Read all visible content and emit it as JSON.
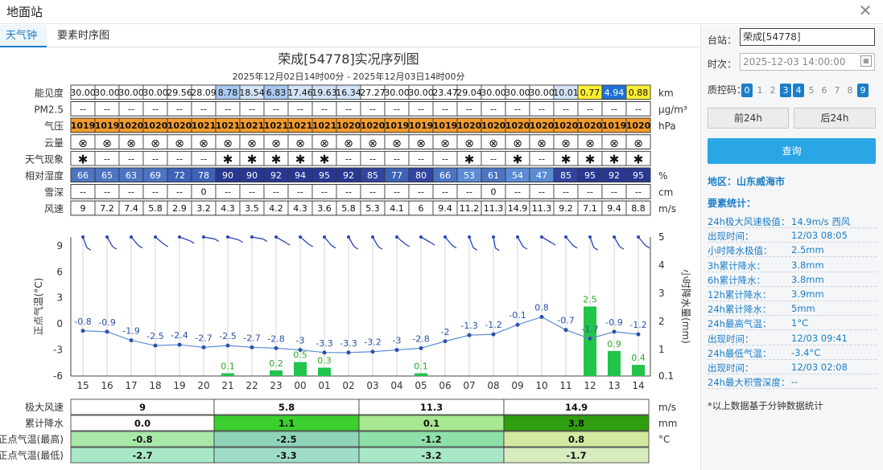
{
  "window": {
    "title": "地面站"
  },
  "tabs": [
    "天气钟",
    "要素时序图"
  ],
  "chart_data": {
    "type": "line",
    "title": "荣成[54778]实况序列图",
    "subtitle": "2025年12月02日14时00分 - 2025年12月03日14时00分",
    "hours": [
      "15",
      "16",
      "17",
      "18",
      "19",
      "20",
      "21",
      "22",
      "23",
      "00",
      "01",
      "02",
      "03",
      "04",
      "05",
      "06",
      "07",
      "08",
      "09",
      "10",
      "11",
      "12",
      "13",
      "14"
    ],
    "table": {
      "rows": [
        {
          "name": "能见度",
          "unit": "km",
          "values": [
            "30.00",
            "30.00",
            "30.00",
            "30.00",
            "29.56",
            "28.09",
            "8.78",
            "18.54",
            "6.83",
            "17.46",
            "19.63",
            "16.34",
            "27.27",
            "30.00",
            "30.00",
            "23.47",
            "29.04",
            "30.00",
            "30.00",
            "30.00",
            "10.01",
            "0.77",
            "4.94",
            "0.88"
          ]
        },
        {
          "name": "PM2.5",
          "unit": "μg/m³",
          "values": [
            "--",
            "--",
            "--",
            "--",
            "--",
            "--",
            "--",
            "--",
            "--",
            "--",
            "--",
            "--",
            "--",
            "--",
            "--",
            "--",
            "--",
            "--",
            "--",
            "--",
            "--",
            "--",
            "--",
            "--"
          ]
        },
        {
          "name": "气压",
          "unit": "hPa",
          "values": [
            "1019",
            "1019",
            "1020",
            "1020",
            "1020",
            "1021",
            "1021",
            "1021",
            "1021",
            "1021",
            "1021",
            "1020",
            "1020",
            "1019",
            "1019",
            "1019",
            "1020",
            "1020",
            "1020",
            "1020",
            "1020",
            "1020",
            "1019",
            "1020"
          ]
        },
        {
          "name": "云量",
          "unit": "",
          "values": [
            "⊗",
            "⊗",
            "⊗",
            "⊗",
            "⊗",
            "⊗",
            "⊗",
            "⊗",
            "⊗",
            "⊗",
            "⊗",
            "⊗",
            "⊗",
            "⊗",
            "⊗",
            "⊗",
            "⊗",
            "⊗",
            "⊗",
            "⊗",
            "⊗",
            "⊗",
            "⊗",
            "⊗"
          ]
        },
        {
          "name": "天气现象",
          "unit": "",
          "values": [
            "✱",
            "--",
            "--",
            "--",
            "--",
            "--",
            "✱",
            "✱",
            "✱",
            "✱",
            "✱",
            "--",
            "--",
            "--",
            "--",
            "--",
            "✱",
            "--",
            "✱",
            "--",
            "✱",
            "✱",
            "✱",
            "✱"
          ]
        },
        {
          "name": "相对湿度",
          "unit": "%",
          "values": [
            "66",
            "65",
            "63",
            "69",
            "72",
            "78",
            "90",
            "90",
            "92",
            "94",
            "95",
            "92",
            "85",
            "77",
            "80",
            "66",
            "53",
            "61",
            "54",
            "47",
            "85",
            "95",
            "92",
            "95"
          ]
        },
        {
          "name": "雪深",
          "unit": "cm",
          "values": [
            "--",
            "--",
            "--",
            "--",
            "--",
            "0",
            "--",
            "--",
            "--",
            "--",
            "--",
            "--",
            "--",
            "--",
            "--",
            "--",
            "--",
            "0",
            "--",
            "--",
            "--",
            "--",
            "--",
            "--"
          ]
        },
        {
          "name": "风速",
          "unit": "m/s",
          "values": [
            "9",
            "7.2",
            "7.4",
            "5.8",
            "2.9",
            "3.2",
            "4.3",
            "3.5",
            "4.2",
            "4.3",
            "3.6",
            "5.8",
            "5.3",
            "4.1",
            "6",
            "9.4",
            "11.2",
            "11.3",
            "14.9",
            "11.3",
            "9.2",
            "7.1",
            "9.4",
            "8.8"
          ]
        }
      ]
    },
    "temperature": {
      "ylabel": "正点气温(°C)",
      "ylim": [
        -6,
        10
      ],
      "yticks": [
        9,
        6,
        3,
        0,
        -3,
        -6
      ],
      "values": [
        -0.8,
        -0.9,
        -1.9,
        -2.5,
        -2.4,
        -2.7,
        -2.5,
        -2.7,
        -2.8,
        -3,
        -3.3,
        -3.3,
        -3.2,
        -3,
        -2.8,
        -2,
        -1.3,
        -1.2,
        -0.1,
        0.8,
        -0.7,
        -1.7,
        -0.9,
        -1.2
      ]
    },
    "precip": {
      "ylabel": "小时降水量(mm)",
      "yticks": [
        "5",
        "4",
        "3",
        "2",
        "1",
        "0.1"
      ],
      "values": [
        null,
        null,
        null,
        null,
        null,
        null,
        0.1,
        null,
        0.2,
        0.5,
        0.3,
        null,
        null,
        null,
        0.1,
        null,
        null,
        null,
        null,
        null,
        null,
        2.5,
        0.9,
        0.4
      ]
    },
    "wind_dirs_deg": [
      340,
      330,
      320,
      310,
      290,
      280,
      285,
      280,
      300,
      310,
      320,
      330,
      330,
      310,
      300,
      320,
      340,
      350,
      330,
      300,
      320,
      340,
      330,
      320
    ],
    "summary": {
      "rows": [
        {
          "name": "极大风速",
          "unit": "m/s",
          "values": [
            "9",
            "5.8",
            "11.3",
            "14.9"
          ]
        },
        {
          "name": "累计降水",
          "unit": "mm",
          "values": [
            "0.0",
            "1.1",
            "0.1",
            "3.8"
          ]
        },
        {
          "name": "正点气温(最高)",
          "unit": "°C",
          "values": [
            "-0.8",
            "-2.5",
            "-1.2",
            "0.8"
          ]
        },
        {
          "name": "正点气温(最低)",
          "unit": "",
          "values": [
            "-2.7",
            "-3.3",
            "-3.2",
            "-1.7"
          ]
        }
      ]
    }
  },
  "side": {
    "station_label": "台站：",
    "station_value": "荣成[54778]",
    "time_label": "时次：",
    "time_value": "2025-12-03 14:00:00",
    "qc_label": "质控码：",
    "qc_codes": [
      {
        "v": "0",
        "on": true
      },
      {
        "v": "1",
        "on": false
      },
      {
        "v": "2",
        "on": false
      },
      {
        "v": "3",
        "on": true
      },
      {
        "v": "4",
        "on": true
      },
      {
        "v": "5",
        "on": false
      },
      {
        "v": "6",
        "on": false
      },
      {
        "v": "7",
        "on": false
      },
      {
        "v": "8",
        "on": false
      },
      {
        "v": "9",
        "on": true
      }
    ],
    "prev_btn": "前24h",
    "next_btn": "后24h",
    "query_btn": "查询",
    "region": "地区：山东威海市",
    "stats_title": "要素统计：",
    "stats": [
      {
        "k": "24h极大风速极值：",
        "v": "14.9m/s 西风"
      },
      {
        "k": "出现时间：",
        "v": "12/03 08:05"
      },
      {
        "k": "小时降水极值：",
        "v": "2.5mm"
      },
      {
        "k": "3h累计降水：",
        "v": "3.8mm"
      },
      {
        "k": "6h累计降水：",
        "v": "3.8mm"
      },
      {
        "k": "12h累计降水：",
        "v": "3.9mm"
      },
      {
        "k": "24h累计降水：",
        "v": "5mm"
      },
      {
        "k": "24h最高气温：",
        "v": "1°C"
      },
      {
        "k": "出现时间：",
        "v": "12/03 09:41"
      },
      {
        "k": "24h最低气温：",
        "v": "-3.4°C"
      },
      {
        "k": "出现时间：",
        "v": "12/03 02:08"
      },
      {
        "k": "24h最大积雪深度：",
        "v": "--"
      }
    ],
    "note": "*以上数据基于分钟数据统计"
  }
}
